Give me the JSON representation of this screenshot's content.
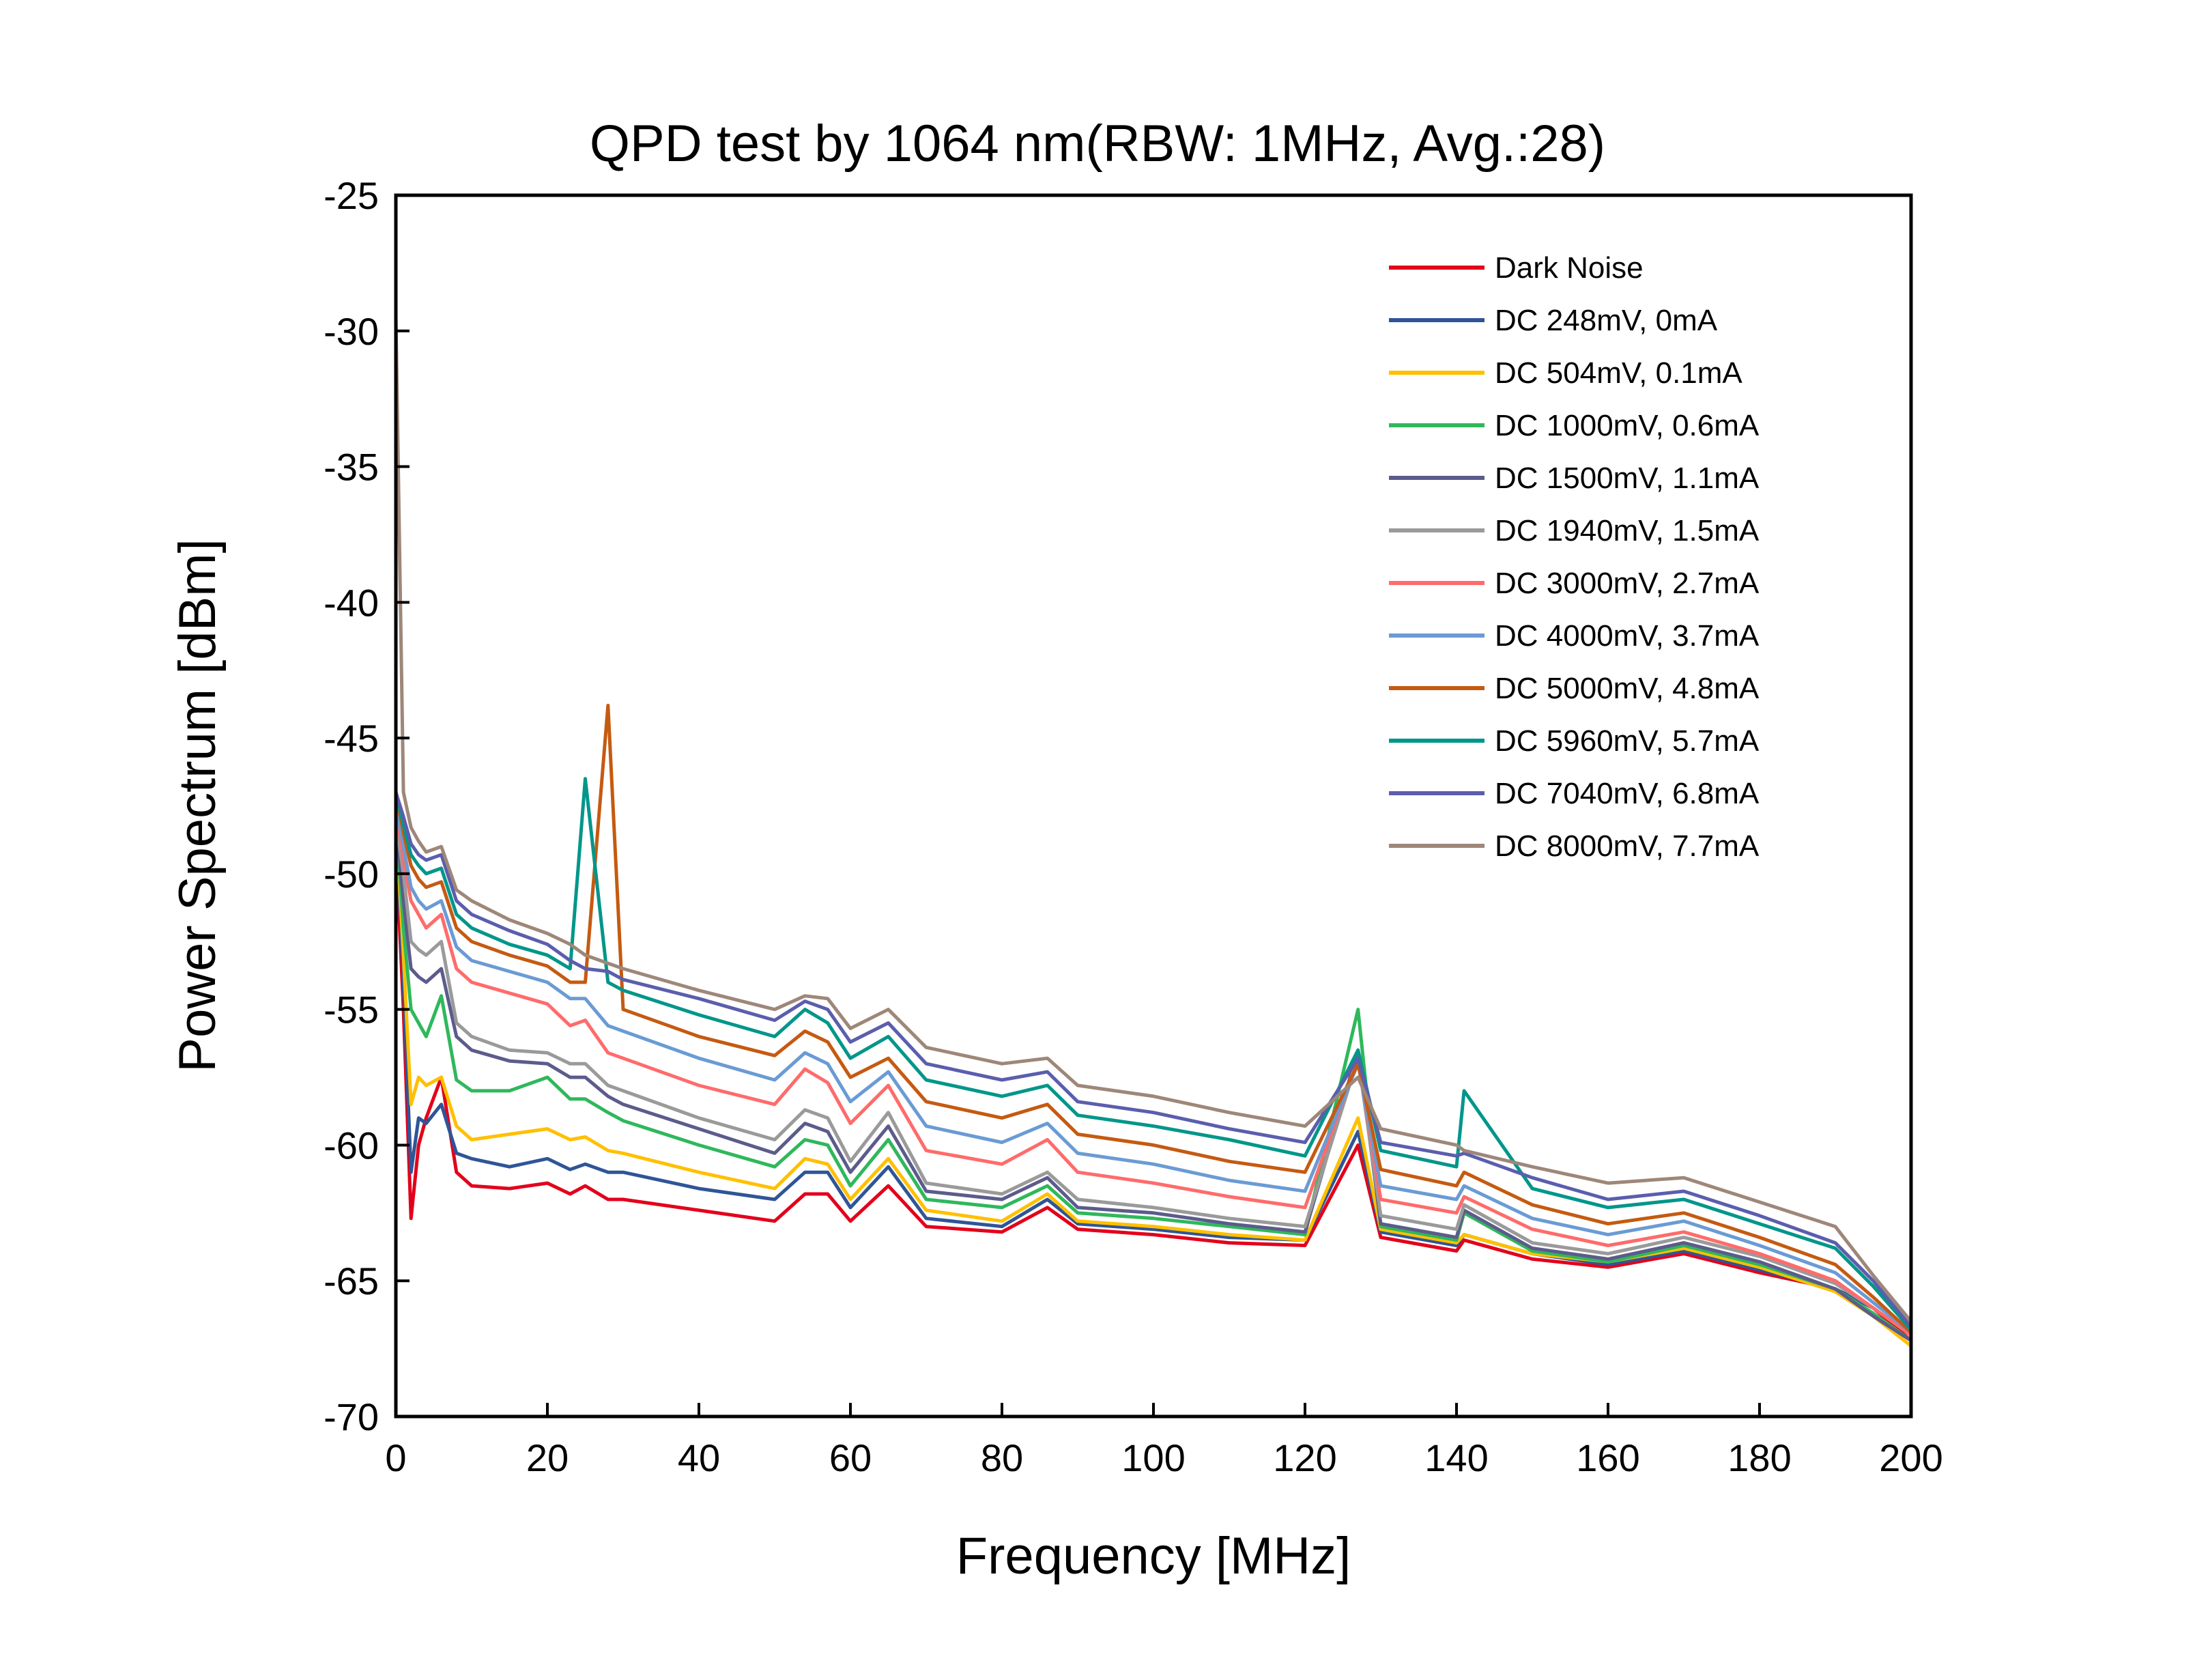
{
  "chart_data": {
    "type": "line",
    "title": "QPD test by 1064 nm(RBW: 1MHz, Avg.:28)",
    "xlabel": "Frequency [MHz]",
    "ylabel": "Power Spectrum [dBm]",
    "xlim": [
      0,
      200
    ],
    "ylim": [
      -70,
      -25
    ],
    "x_ticks": [
      0,
      20,
      40,
      60,
      80,
      100,
      120,
      140,
      160,
      180,
      200
    ],
    "y_ticks": [
      -70,
      -65,
      -60,
      -55,
      -50,
      -45,
      -40,
      -35,
      -30,
      -25
    ],
    "grid": false,
    "legend_position": "top-right",
    "x": [
      0,
      1,
      2,
      3,
      4,
      6,
      8,
      10,
      15,
      20,
      23,
      25,
      28,
      30,
      40,
      50,
      54,
      57,
      60,
      65,
      70,
      80,
      86,
      90,
      100,
      110,
      120,
      127,
      130,
      140,
      141,
      150,
      160,
      170,
      180,
      190,
      195,
      200
    ],
    "series": [
      {
        "name": "Dark Noise",
        "color": "#e3001b",
        "values": [
          -49.0,
          -55.0,
          -62.7,
          -60.0,
          -59.0,
          -57.5,
          -61.0,
          -61.5,
          -61.6,
          -61.4,
          -61.8,
          -61.5,
          -62.0,
          -62.0,
          -62.4,
          -62.8,
          -61.8,
          -61.8,
          -62.8,
          -61.5,
          -63.0,
          -63.2,
          -62.3,
          -63.1,
          -63.3,
          -63.6,
          -63.7,
          -60.0,
          -63.4,
          -63.9,
          -63.5,
          -64.2,
          -64.5,
          -64.0,
          -64.7,
          -65.3,
          -66.0,
          -67.2
        ]
      },
      {
        "name": "DC 248mV, 0mA",
        "color": "#2f5597",
        "values": [
          -48.0,
          -54.0,
          -61.0,
          -59.0,
          -59.2,
          -58.5,
          -60.3,
          -60.5,
          -60.8,
          -60.5,
          -60.9,
          -60.7,
          -61.0,
          -61.0,
          -61.6,
          -62.0,
          -61.0,
          -61.0,
          -62.3,
          -60.8,
          -62.7,
          -63.0,
          -62.0,
          -62.9,
          -63.1,
          -63.4,
          -63.5,
          -59.5,
          -63.2,
          -63.7,
          -63.3,
          -64.0,
          -64.4,
          -63.9,
          -64.6,
          -65.3,
          -66.0,
          -67.0
        ]
      },
      {
        "name": "DC 504mV, 0.1mA",
        "color": "#ffc000",
        "values": [
          -48.0,
          -53.0,
          -58.5,
          -57.5,
          -57.8,
          -57.5,
          -59.3,
          -59.8,
          -59.6,
          -59.4,
          -59.8,
          -59.7,
          -60.2,
          -60.3,
          -61.0,
          -61.6,
          -60.5,
          -60.7,
          -62.0,
          -60.5,
          -62.4,
          -62.8,
          -61.8,
          -62.8,
          -63.0,
          -63.3,
          -63.5,
          -59.0,
          -63.1,
          -63.6,
          -63.3,
          -64.0,
          -64.3,
          -63.8,
          -64.5,
          -65.4,
          -66.3,
          -67.4
        ]
      },
      {
        "name": "DC 1000mV, 0.6mA",
        "color": "#2fb85b",
        "values": [
          -48.0,
          -52.0,
          -55.0,
          -55.5,
          -56.0,
          -54.5,
          -57.6,
          -58.0,
          -58.0,
          -57.5,
          -58.3,
          -58.3,
          -58.8,
          -59.1,
          -60.0,
          -60.8,
          -59.8,
          -60.0,
          -61.5,
          -59.8,
          -62.0,
          -62.3,
          -61.5,
          -62.5,
          -62.7,
          -63.0,
          -63.3,
          -55.0,
          -63.0,
          -63.5,
          -62.5,
          -63.9,
          -64.3,
          -63.7,
          -64.4,
          -65.3,
          -66.2,
          -67.2
        ]
      },
      {
        "name": "DC 1500mV, 1.1mA",
        "color": "#5c5b8c",
        "values": [
          -48.0,
          -51.0,
          -53.5,
          -53.8,
          -54.0,
          -53.5,
          -56.0,
          -56.5,
          -56.9,
          -57.0,
          -57.5,
          -57.5,
          -58.2,
          -58.5,
          -59.4,
          -60.3,
          -59.2,
          -59.5,
          -61.0,
          -59.3,
          -61.7,
          -62.0,
          -61.2,
          -62.3,
          -62.5,
          -62.9,
          -63.2,
          -56.5,
          -62.9,
          -63.4,
          -62.4,
          -63.8,
          -64.2,
          -63.6,
          -64.3,
          -65.3,
          -66.3,
          -67.2
        ]
      },
      {
        "name": "DC 1940mV, 1.5mA",
        "color": "#9a9a9a",
        "values": [
          -48.0,
          -50.0,
          -52.5,
          -52.8,
          -53.0,
          -52.5,
          -55.5,
          -56.0,
          -56.5,
          -56.6,
          -57.0,
          -57.0,
          -57.8,
          -58.0,
          -59.0,
          -59.8,
          -58.7,
          -59.0,
          -60.6,
          -58.8,
          -61.4,
          -61.8,
          -61.0,
          -62.0,
          -62.3,
          -62.7,
          -63.0,
          -56.8,
          -62.6,
          -63.1,
          -62.2,
          -63.6,
          -64.0,
          -63.4,
          -64.1,
          -65.1,
          -66.0,
          -67.0
        ]
      },
      {
        "name": "DC 3000mV, 2.7mA",
        "color": "#ff6b6b",
        "values": [
          -47.5,
          -49.5,
          -51.0,
          -51.5,
          -52.0,
          -51.5,
          -53.5,
          -54.0,
          -54.4,
          -54.8,
          -55.6,
          -55.4,
          -56.6,
          -56.8,
          -57.8,
          -58.5,
          -57.2,
          -57.7,
          -59.2,
          -57.8,
          -60.2,
          -60.7,
          -59.8,
          -61.0,
          -61.4,
          -61.9,
          -62.3,
          -56.8,
          -62.0,
          -62.5,
          -61.9,
          -63.1,
          -63.7,
          -63.2,
          -64.0,
          -65.0,
          -66.0,
          -67.0
        ]
      },
      {
        "name": "DC 4000mV, 3.7mA",
        "color": "#6a9bd4",
        "values": [
          -47.5,
          -49.0,
          -50.5,
          -51.0,
          -51.3,
          -51.0,
          -52.7,
          -53.2,
          -53.6,
          -54.0,
          -54.6,
          -54.6,
          -55.6,
          -55.8,
          -56.8,
          -57.6,
          -56.6,
          -57.0,
          -58.4,
          -57.3,
          -59.3,
          -59.9,
          -59.2,
          -60.3,
          -60.7,
          -61.3,
          -61.7,
          -57.0,
          -61.5,
          -62.0,
          -61.5,
          -62.7,
          -63.3,
          -62.8,
          -63.7,
          -64.7,
          -65.8,
          -66.9
        ]
      },
      {
        "name": "DC 5000mV, 4.8mA",
        "color": "#c55a11",
        "values": [
          -47.0,
          -48.5,
          -49.7,
          -50.2,
          -50.5,
          -50.3,
          -52.0,
          -52.5,
          -53.0,
          -53.4,
          -54.0,
          -54.0,
          -43.8,
          -55.0,
          -56.0,
          -56.7,
          -55.8,
          -56.2,
          -57.5,
          -56.8,
          -58.4,
          -59.0,
          -58.5,
          -59.6,
          -60.0,
          -60.6,
          -61.0,
          -57.0,
          -60.9,
          -61.5,
          -61.0,
          -62.2,
          -62.9,
          -62.5,
          -63.4,
          -64.4,
          -65.6,
          -66.9
        ]
      },
      {
        "name": "DC 5960mV, 5.7mA",
        "color": "#00968a",
        "values": [
          -47.0,
          -48.2,
          -49.3,
          -49.7,
          -50.0,
          -49.8,
          -51.5,
          -52.0,
          -52.6,
          -53.0,
          -53.5,
          -46.5,
          -54.0,
          -54.3,
          -55.2,
          -56.0,
          -55.0,
          -55.5,
          -56.8,
          -56.0,
          -57.6,
          -58.2,
          -57.8,
          -58.9,
          -59.3,
          -59.8,
          -60.4,
          -56.5,
          -60.2,
          -60.8,
          -58.0,
          -61.6,
          -62.3,
          -62.0,
          -62.9,
          -63.8,
          -65.2,
          -66.8
        ]
      },
      {
        "name": "DC 7040mV, 6.8mA",
        "color": "#5b5ead",
        "values": [
          -47.0,
          -47.9,
          -48.9,
          -49.3,
          -49.5,
          -49.3,
          -51.0,
          -51.5,
          -52.1,
          -52.6,
          -53.2,
          -53.5,
          -53.6,
          -53.9,
          -54.6,
          -55.4,
          -54.7,
          -55.0,
          -56.2,
          -55.5,
          -57.0,
          -57.6,
          -57.3,
          -58.4,
          -58.8,
          -59.4,
          -59.9,
          -56.8,
          -59.9,
          -60.4,
          -60.3,
          -61.2,
          -62.0,
          -61.7,
          -62.6,
          -63.6,
          -65.0,
          -66.7
        ]
      },
      {
        "name": "DC 8000mV, 7.7mA",
        "color": "#9e8779",
        "values": [
          -29.5,
          -47.0,
          -48.3,
          -48.8,
          -49.2,
          -49.0,
          -50.6,
          -51.0,
          -51.7,
          -52.2,
          -52.6,
          -53.0,
          -53.3,
          -53.5,
          -54.3,
          -55.0,
          -54.5,
          -54.6,
          -55.7,
          -55.0,
          -56.4,
          -57.0,
          -56.8,
          -57.8,
          -58.2,
          -58.8,
          -59.3,
          -57.5,
          -59.4,
          -60.0,
          -60.2,
          -60.8,
          -61.4,
          -61.2,
          -62.1,
          -63.0,
          -64.8,
          -66.5
        ]
      }
    ]
  }
}
